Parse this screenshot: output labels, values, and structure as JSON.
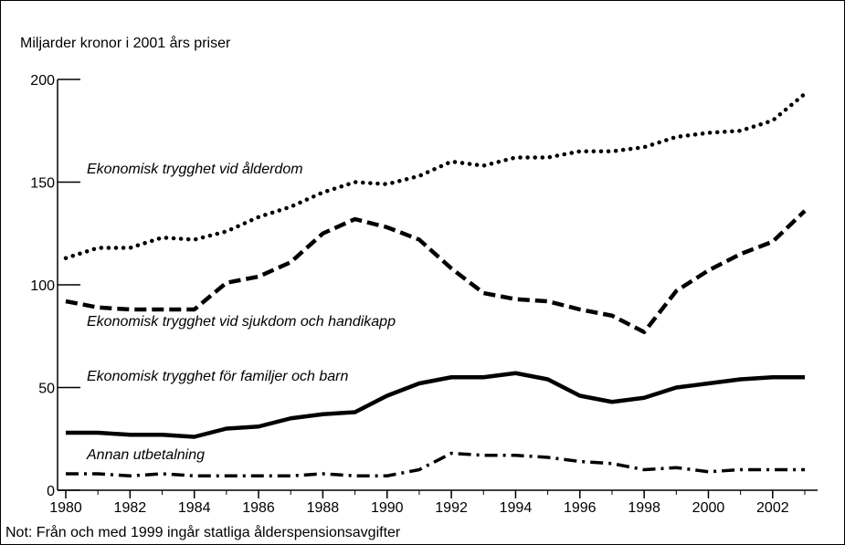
{
  "chart_data": {
    "type": "line",
    "ylabel": "Miljarder kronor i 2001 års priser",
    "note": "Not: Från och med 1999 ingår statliga ålderspensionsavgifter",
    "x": [
      1980,
      1981,
      1982,
      1983,
      1984,
      1985,
      1986,
      1987,
      1988,
      1989,
      1990,
      1991,
      1992,
      1993,
      1994,
      1995,
      1996,
      1997,
      1998,
      1999,
      2000,
      2001,
      2002,
      2003
    ],
    "xlim": [
      1980,
      2003
    ],
    "xticks": [
      1980,
      1982,
      1984,
      1986,
      1988,
      1990,
      1992,
      1994,
      1996,
      1998,
      2000,
      2002
    ],
    "ylim": [
      0,
      200
    ],
    "yticks": [
      0,
      50,
      100,
      150,
      200
    ],
    "series": [
      {
        "name": "Ekonomisk trygghet vid ålderdom",
        "color": "#000000",
        "style": "dotted",
        "values": [
          113,
          118,
          118,
          123,
          122,
          126,
          133,
          138,
          145,
          150,
          149,
          153,
          160,
          158,
          162,
          162,
          165,
          165,
          167,
          172,
          174,
          175,
          180,
          193
        ]
      },
      {
        "name": "Ekonomisk trygghet vid sjukdom och handikapp",
        "color": "#000000",
        "style": "dashed",
        "values": [
          92,
          89,
          88,
          88,
          88,
          101,
          104,
          111,
          125,
          132,
          128,
          122,
          108,
          96,
          93,
          92,
          88,
          85,
          77,
          97,
          107,
          115,
          121,
          136
        ]
      },
      {
        "name": "Ekonomisk trygghet för familjer och barn",
        "color": "#000000",
        "style": "solid",
        "values": [
          28,
          28,
          27,
          27,
          26,
          30,
          31,
          35,
          37,
          38,
          46,
          52,
          55,
          55,
          57,
          54,
          46,
          43,
          45,
          50,
          52,
          54,
          55,
          55
        ]
      },
      {
        "name": "Annan utbetalning",
        "color": "#000000",
        "style": "dashdot",
        "values": [
          8,
          8,
          7,
          8,
          7,
          7,
          7,
          7,
          8,
          7,
          7,
          10,
          18,
          17,
          17,
          16,
          14,
          13,
          10,
          11,
          9,
          10,
          10,
          10
        ]
      }
    ]
  }
}
